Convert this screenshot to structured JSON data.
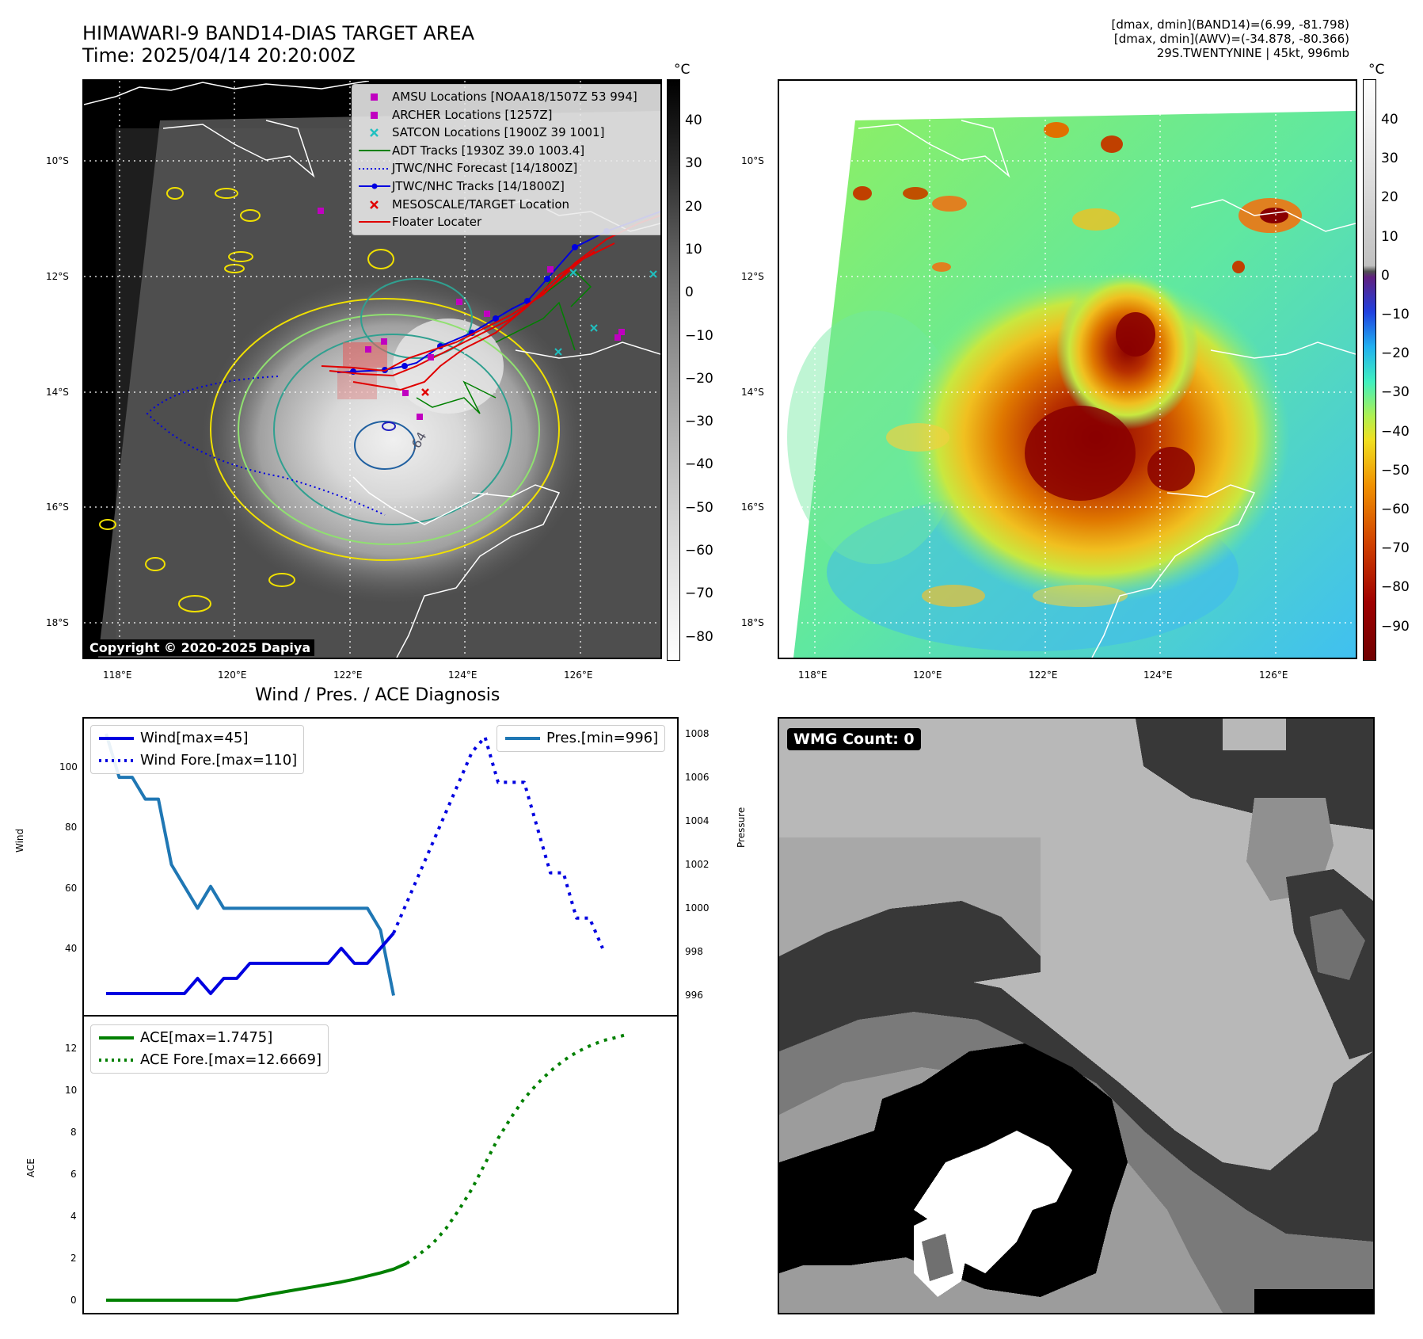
{
  "header": {
    "title_line1": "HIMAWARI-9 BAND14-DIAS TARGET AREA",
    "title_line2": "Time: 2025/04/14 20:20:00Z",
    "stats_line1": "[dmax, dmin](BAND14)=(6.99, -81.798)",
    "stats_line2": "[dmax, dmin](AWV)=(-34.878, -80.366)",
    "stats_line3": "29S.TWENTYNINE | 45kt, 996mb"
  },
  "map": {
    "lat_labels": [
      "10°S",
      "12°S",
      "14°S",
      "16°S",
      "18°S"
    ],
    "lon_labels": [
      "118°E",
      "120°E",
      "122°E",
      "124°E",
      "126°E"
    ],
    "copyright": "Copyright © 2020-2025 Dapiya",
    "contour_label": "-64",
    "legend": [
      {
        "label": "AMSU Locations [NOAA18/1507Z 53 994]",
        "symbol": "square",
        "color": "#c000c0"
      },
      {
        "label": "ARCHER Locations [1257Z]",
        "symbol": "square",
        "color": "#c000c0"
      },
      {
        "label": "SATCON Locations [1900Z 39 1001]",
        "symbol": "x",
        "color": "#20c0c0"
      },
      {
        "label": "ADT Tracks [1930Z 39.0 1003.4]",
        "symbol": "line",
        "color": "#008000"
      },
      {
        "label": "JTWC/NHC Forecast [14/1800Z]",
        "symbol": "dotted",
        "color": "#0000e0"
      },
      {
        "label": "JTWC/NHC Tracks [14/1800Z]",
        "symbol": "line-dot",
        "color": "#0000e0"
      },
      {
        "label": "MESOSCALE/TARGET Location",
        "symbol": "x",
        "color": "#e00000"
      },
      {
        "label": "Floater Locater",
        "symbol": "line",
        "color": "#e00000"
      }
    ]
  },
  "colorbar_gray": {
    "unit": "°C",
    "ticks": [
      "40",
      "30",
      "20",
      "10",
      "0",
      "−10",
      "−20",
      "−30",
      "−40",
      "−50",
      "−60",
      "−70",
      "−80"
    ]
  },
  "colorbar_color": {
    "unit": "°C",
    "ticks": [
      "40",
      "30",
      "20",
      "10",
      "0",
      "−10",
      "−20",
      "−30",
      "−40",
      "−50",
      "−60",
      "−70",
      "−80",
      "−90"
    ]
  },
  "wmg_panel": {
    "badge": "WMG Count: 0"
  },
  "chart_data": [
    {
      "type": "line",
      "title": "Wind / Pres. / ACE Diagnosis",
      "ylabel": "Wind",
      "ylabel_right": "Pressure",
      "ylim": [
        20,
        114
      ],
      "ylim_right": [
        995.4,
        1008.4
      ],
      "yticks": [
        "100",
        "80",
        "60",
        "40"
      ],
      "yticks_right": [
        "1008",
        "1006",
        "1004",
        "1002",
        "1000",
        "998",
        "996"
      ],
      "legend_left": [
        "Wind[max=45]",
        "Wind Fore.[max=110]"
      ],
      "legend_right": [
        "Pres.[min=996]"
      ],
      "series": [
        {
          "name": "Wind[max=45]",
          "axis": "left",
          "style": "solid",
          "color": "#0000e0",
          "values": [
            [
              0,
              25
            ],
            [
              3,
              25
            ],
            [
              6,
              25
            ],
            [
              7,
              30
            ],
            [
              8,
              25
            ],
            [
              9,
              30
            ],
            [
              10,
              30
            ],
            [
              11,
              35
            ],
            [
              12,
              35
            ],
            [
              13,
              35
            ],
            [
              14,
              35
            ],
            [
              15,
              35
            ],
            [
              16,
              35
            ],
            [
              17,
              35
            ],
            [
              18,
              40
            ],
            [
              19,
              35
            ],
            [
              20,
              35
            ],
            [
              21,
              40
            ],
            [
              22,
              45
            ]
          ]
        },
        {
          "name": "Wind Fore.[max=110]",
          "axis": "left",
          "style": "dotted",
          "color": "#0000e0",
          "values": [
            [
              22,
              45
            ],
            [
              23,
              55
            ],
            [
              24,
              65
            ],
            [
              25,
              75
            ],
            [
              26,
              85
            ],
            [
              27,
              95
            ],
            [
              28,
              105
            ],
            [
              29,
              110
            ],
            [
              30,
              95
            ],
            [
              31,
              95
            ],
            [
              32,
              95
            ],
            [
              33,
              80
            ],
            [
              34,
              65
            ],
            [
              35,
              65
            ],
            [
              36,
              50
            ],
            [
              37,
              50
            ],
            [
              38,
              40
            ]
          ]
        }
      ],
      "pressure": {
        "name": "Pres.[min=996]",
        "axis": "right",
        "style": "solid",
        "color": "#1f77b4",
        "values": [
          [
            0,
            1008
          ],
          [
            1,
            1006
          ],
          [
            2,
            1006
          ],
          [
            3,
            1005
          ],
          [
            4,
            1005
          ],
          [
            5,
            1002
          ],
          [
            6,
            1001
          ],
          [
            7,
            1000
          ],
          [
            8,
            1001
          ],
          [
            9,
            1000
          ],
          [
            10,
            1000
          ],
          [
            11,
            1000
          ],
          [
            12,
            1000
          ],
          [
            13,
            1000
          ],
          [
            14,
            1000
          ],
          [
            15,
            1000
          ],
          [
            16,
            1000
          ],
          [
            17,
            1000
          ],
          [
            18,
            1000
          ],
          [
            19,
            1000
          ],
          [
            20,
            1000
          ],
          [
            21,
            999
          ],
          [
            22,
            996
          ]
        ]
      }
    },
    {
      "type": "line",
      "ylabel": "ACE",
      "ylim": [
        -0.3,
        13.2
      ],
      "yticks": [
        "12",
        "10",
        "8",
        "6",
        "4",
        "2",
        "0"
      ],
      "legend": [
        "ACE[max=1.7475]",
        "ACE Fore.[max=12.6669]"
      ],
      "series": [
        {
          "name": "ACE[max=1.7475]",
          "style": "solid",
          "color": "#008000",
          "values": [
            [
              0,
              0
            ],
            [
              2,
              0
            ],
            [
              4,
              0
            ],
            [
              6,
              0
            ],
            [
              8,
              0
            ],
            [
              10,
              0
            ],
            [
              12,
              0.22
            ],
            [
              14,
              0.44
            ],
            [
              16,
              0.65
            ],
            [
              18,
              0.87
            ],
            [
              19,
              1.0
            ],
            [
              20,
              1.15
            ],
            [
              21,
              1.3
            ],
            [
              22,
              1.48
            ],
            [
              23,
              1.75
            ]
          ]
        },
        {
          "name": "ACE Fore.[max=12.6669]",
          "style": "dotted",
          "color": "#008000",
          "values": [
            [
              23,
              1.75
            ],
            [
              24,
              2.2
            ],
            [
              25,
              2.7
            ],
            [
              26,
              3.4
            ],
            [
              27,
              4.3
            ],
            [
              28,
              5.3
            ],
            [
              29,
              6.5
            ],
            [
              30,
              7.7
            ],
            [
              31,
              8.7
            ],
            [
              32,
              9.6
            ],
            [
              33,
              10.3
            ],
            [
              34,
              10.9
            ],
            [
              35,
              11.4
            ],
            [
              36,
              11.8
            ],
            [
              37,
              12.1
            ],
            [
              38,
              12.35
            ],
            [
              39,
              12.5
            ],
            [
              40,
              12.67
            ]
          ]
        }
      ]
    }
  ]
}
